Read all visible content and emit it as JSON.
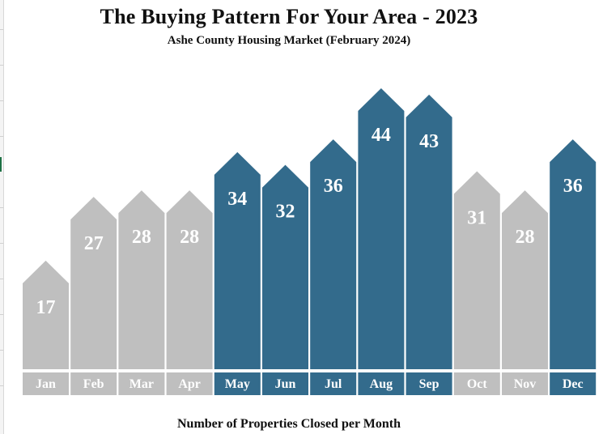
{
  "colors": {
    "highlight": "#336b8c",
    "muted": "#bfbfbf",
    "text": "#111111"
  },
  "chart_data": {
    "type": "bar",
    "title": "The Buying Pattern For Your Area - 2023",
    "subtitle": "Ashe County Housing Market (February 2024)",
    "xlabel": "Number of Properties Closed per Month",
    "ylabel": "",
    "categories": [
      "Jan",
      "Feb",
      "Mar",
      "Apr",
      "May",
      "Jun",
      "Jul",
      "Aug",
      "Sep",
      "Oct",
      "Nov",
      "Dec"
    ],
    "values": [
      17,
      27,
      28,
      28,
      34,
      32,
      36,
      44,
      43,
      31,
      28,
      36
    ],
    "highlighted": [
      false,
      false,
      false,
      false,
      true,
      true,
      true,
      true,
      true,
      false,
      false,
      true
    ],
    "ylim": [
      0,
      44
    ],
    "grid": false,
    "legend": "none"
  }
}
